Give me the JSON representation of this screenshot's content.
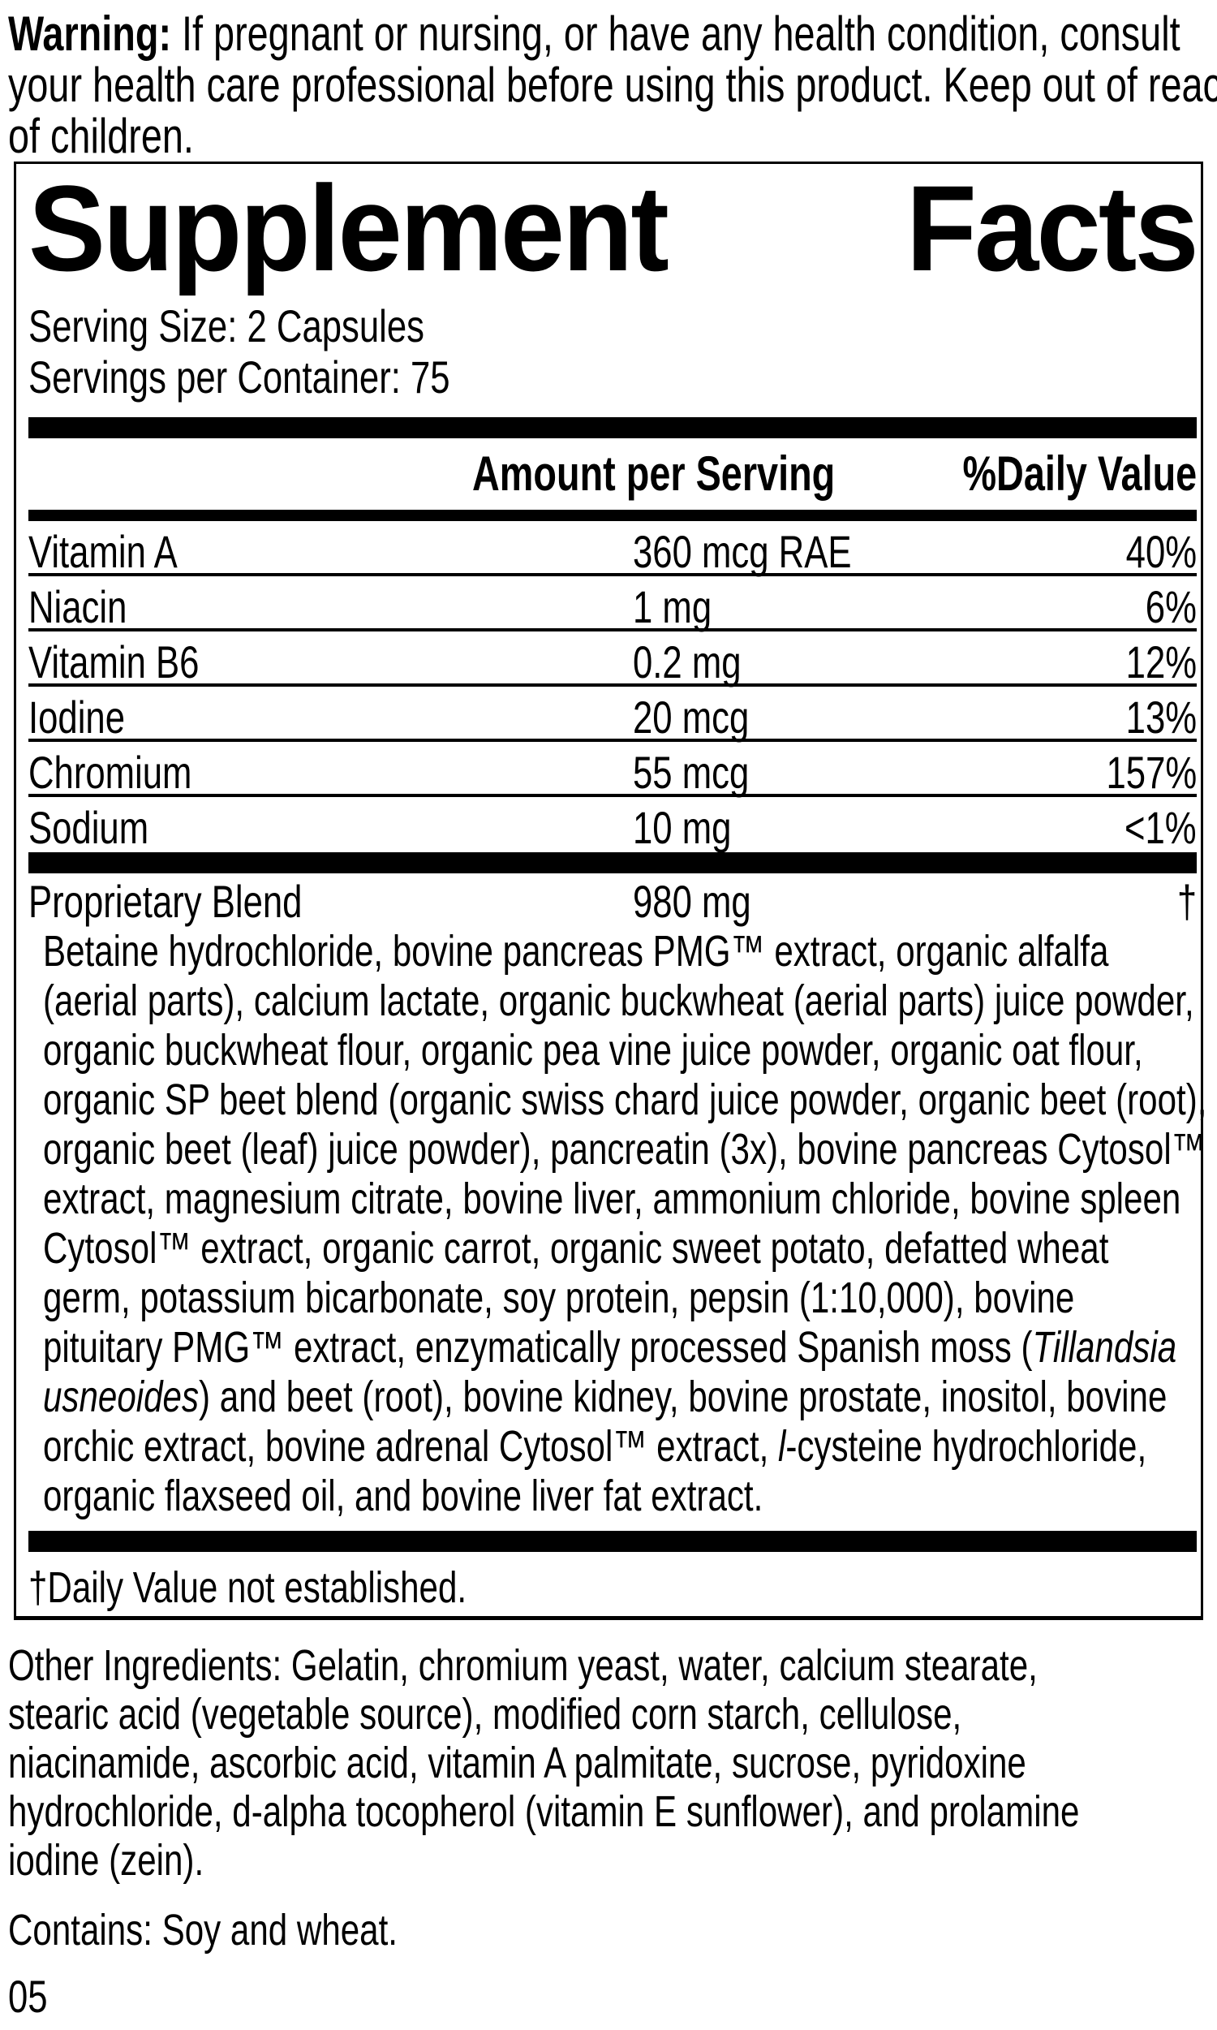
{
  "colors": {
    "text": "#000000",
    "background": "#ffffff"
  },
  "warning": {
    "lines": [
      [
        {
          "t": "Warning:",
          "b": true
        },
        {
          "t": " If pregnant or nursing, or have any health condition, consult"
        }
      ],
      [
        {
          "t": "your health care professional before using this product. Keep out of reach"
        }
      ],
      [
        {
          "t": "of children."
        }
      ]
    ]
  },
  "panel": {
    "title_left": "Supplement",
    "title_right": "Facts",
    "serving_size": "Serving Size: 2 Capsules",
    "servings_per_container": "Servings per Container: 75",
    "columns": {
      "amount": "Amount per Serving",
      "daily_value": "%Daily Value"
    },
    "nutrients": [
      {
        "name": "Vitamin A",
        "amount": "360 mcg RAE",
        "dv": "40%"
      },
      {
        "name": "Niacin",
        "amount": "1 mg",
        "dv": "6%"
      },
      {
        "name": "Vitamin B6",
        "amount": "0.2 mg",
        "dv": "12%"
      },
      {
        "name": "Iodine",
        "amount": "20 mcg",
        "dv": "13%"
      },
      {
        "name": "Chromium",
        "amount": "55 mcg",
        "dv": "157%"
      },
      {
        "name": "Sodium",
        "amount": "10 mg",
        "dv": "<1%"
      }
    ],
    "proprietary": {
      "name": "Proprietary Blend",
      "amount": "980 mg",
      "dv": "†"
    },
    "blend_lines": [
      [
        {
          "t": "Betaine hydrochloride, bovine pancreas PMG™ extract, organic alfalfa"
        }
      ],
      [
        {
          "t": "(aerial parts), calcium lactate, organic buckwheat (aerial parts) juice powder,"
        }
      ],
      [
        {
          "t": "organic buckwheat flour, organic pea vine juice powder, organic oat flour,"
        }
      ],
      [
        {
          "t": "organic SP beet blend (organic swiss chard juice powder, organic beet (root),"
        }
      ],
      [
        {
          "t": "organic beet (leaf) juice powder), pancreatin (3x), bovine pancreas Cytosol™"
        }
      ],
      [
        {
          "t": "extract, magnesium citrate, bovine liver, ammonium chloride, bovine spleen"
        }
      ],
      [
        {
          "t": "Cytosol™ extract, organic carrot, organic sweet potato, defatted wheat"
        }
      ],
      [
        {
          "t": "germ, potassium bicarbonate, soy protein, pepsin (1:10,000), bovine"
        }
      ],
      [
        {
          "t": "pituitary PMG™ extract, enzymatically processed Spanish moss ("
        },
        {
          "t": "Tillandsia",
          "i": true
        }
      ],
      [
        {
          "t": "usneoides",
          "i": true
        },
        {
          "t": ") and beet (root), bovine kidney, bovine prostate, inositol, bovine"
        }
      ],
      [
        {
          "t": "orchic extract, bovine adrenal Cytosol™ extract, "
        },
        {
          "t": "l",
          "i": true
        },
        {
          "t": "-cysteine hydrochloride,"
        }
      ],
      [
        {
          "t": "organic flaxseed oil, and bovine liver fat extract."
        }
      ]
    ],
    "footnote": "†Daily Value not established."
  },
  "other_ingredients": {
    "lines": [
      "Other Ingredients: Gelatin, chromium yeast, water, calcium stearate,",
      "stearic acid (vegetable source), modified corn starch, cellulose,",
      "niacinamide, ascorbic acid, vitamin A palmitate, sucrose, pyridoxine",
      "hydrochloride, d-alpha tocopherol (vitamin E sunflower), and prolamine",
      "iodine (zein)."
    ]
  },
  "contains": "Contains: Soy and wheat.",
  "page_number": "05"
}
